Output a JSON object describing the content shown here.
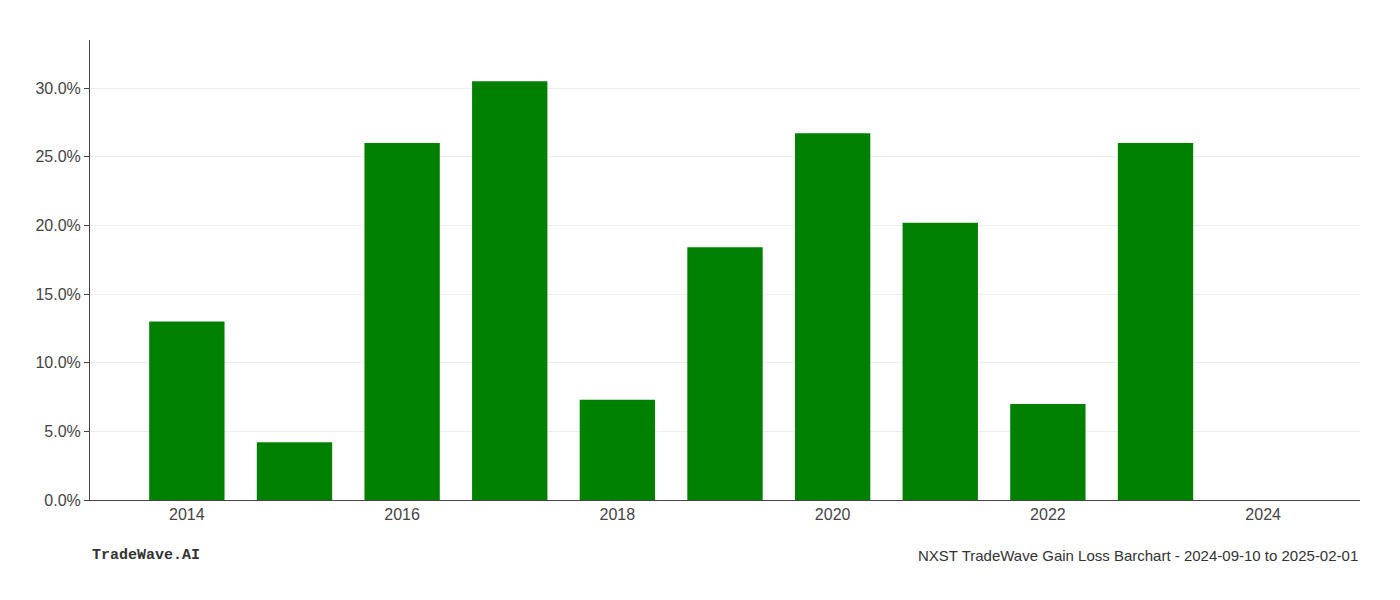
{
  "chart_data": {
    "type": "bar",
    "x": [
      2014,
      2015,
      2016,
      2017,
      2018,
      2019,
      2020,
      2021,
      2022,
      2023
    ],
    "values": [
      0.13,
      0.042,
      0.26,
      0.305,
      0.073,
      0.184,
      0.267,
      0.202,
      0.07,
      0.26
    ],
    "color": "#008000",
    "xlim": [
      2013.1,
      2024.9
    ],
    "xticks": [
      2014,
      2016,
      2018,
      2020,
      2022,
      2024
    ],
    "ylim": [
      0,
      0.335
    ],
    "yticks": [
      {
        "value": 0.0,
        "label": "0.0%"
      },
      {
        "value": 0.05,
        "label": "5.0%"
      },
      {
        "value": 0.1,
        "label": "10.0%"
      },
      {
        "value": 0.15,
        "label": "15.0%"
      },
      {
        "value": 0.2,
        "label": "20.0%"
      },
      {
        "value": 0.25,
        "label": "25.0%"
      },
      {
        "value": 0.3,
        "label": "30.0%"
      }
    ],
    "grid": true,
    "annotations": [
      "TradeWave.AI",
      "NXST TradeWave Gain Loss Barchart - 2024-09-10 to 2025-02-01"
    ]
  }
}
